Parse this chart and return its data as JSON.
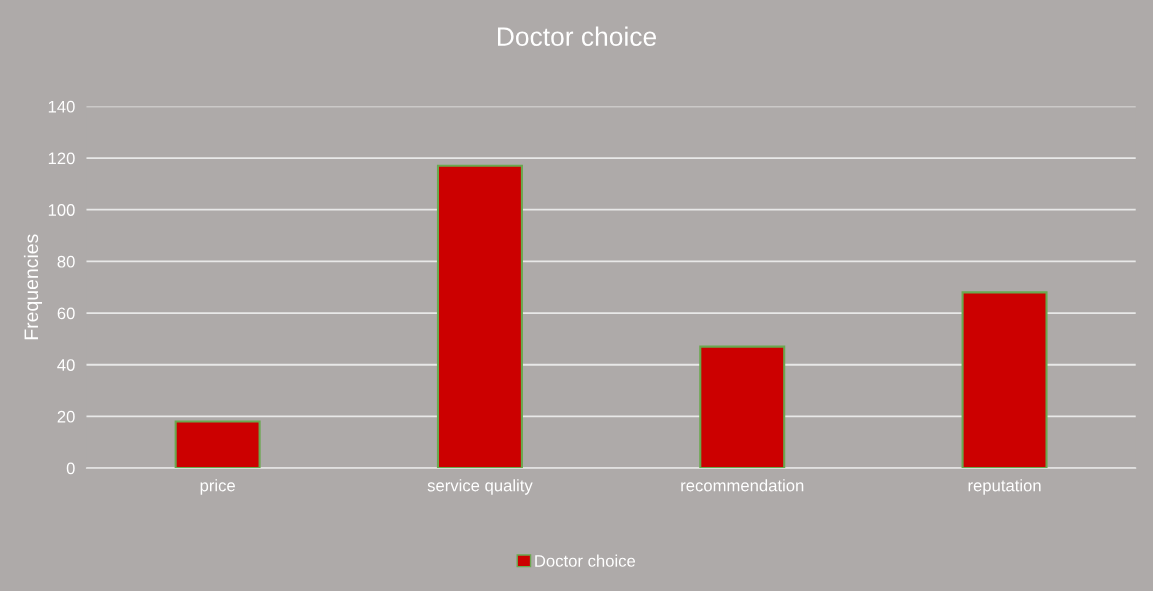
{
  "chart_data": {
    "type": "bar",
    "title": "Doctor choice",
    "ylabel": "Frequencies",
    "categories": [
      "price",
      "service quality",
      "recommendation",
      "reputation"
    ],
    "series": [
      {
        "name": "Doctor choice",
        "color": "#cc0000",
        "values": [
          18,
          117,
          47,
          68
        ]
      }
    ],
    "ylim": [
      0,
      140
    ],
    "yticks": [
      0,
      20,
      40,
      60,
      80,
      100,
      120,
      140
    ],
    "grid": "y",
    "legend": "bottom"
  }
}
